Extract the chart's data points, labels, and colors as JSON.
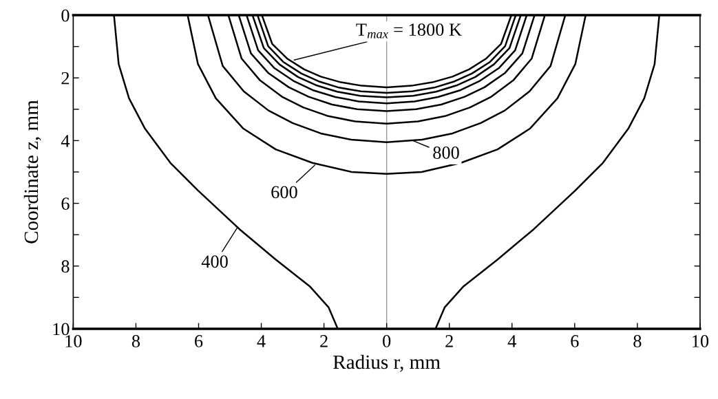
{
  "chart_data": {
    "type": "line",
    "xlabel": "Radius r, mm",
    "ylabel": "Coordinate z, mm",
    "xlim": [
      -10,
      10
    ],
    "xticks": [
      {
        "value": -10,
        "label": "10"
      },
      {
        "value": -8,
        "label": "8"
      },
      {
        "value": -6,
        "label": "6"
      },
      {
        "value": -4,
        "label": "4"
      },
      {
        "value": -2,
        "label": "2"
      },
      0,
      2,
      4,
      6,
      8,
      10
    ],
    "ylim": [
      10,
      0
    ],
    "yticks": [
      0,
      {
        "value": 1,
        "label": null
      },
      2,
      {
        "value": 3,
        "label": null
      },
      4,
      {
        "value": 5,
        "label": null
      },
      6,
      {
        "value": 7,
        "label": null
      },
      8,
      {
        "value": 9,
        "label": null
      },
      10
    ],
    "grid": false,
    "marker": "none",
    "line_style": "solid",
    "ref_lines": [
      {
        "axis": "x",
        "value": 0,
        "label": null,
        "color": "#999999"
      }
    ],
    "annotations": [
      {
        "text": "T$_{max}$ = 1800 K",
        "x": -2.95,
        "y": 1.43
      },
      {
        "text": "800",
        "x": 0.86,
        "y": 4.01
      },
      {
        "text": "600",
        "x": -2.29,
        "y": 4.78
      },
      {
        "text": "400",
        "x": -4.75,
        "y": 6.75
      }
    ],
    "series": [
      {
        "color": "#000000",
        "x": [
          -8.7,
          -8.55,
          -8.22,
          -7.71,
          -6.9,
          -6.02,
          -4.7,
          -3.54,
          -2.44,
          -1.85,
          -1.56
        ],
        "values": [
          0,
          1.56,
          2.65,
          3.62,
          4.71,
          5.59,
          6.82,
          7.79,
          8.66,
          9.32,
          10
        ]
      },
      {
        "color": "#000000",
        "x": [
          8.7,
          8.55,
          8.22,
          7.71,
          6.9,
          6.02,
          4.7,
          3.54,
          2.44,
          1.85,
          1.56
        ],
        "values": [
          0,
          1.56,
          2.65,
          3.62,
          4.71,
          5.59,
          6.82,
          7.79,
          8.66,
          9.32,
          10
        ]
      },
      {
        "color": "#000000",
        "x": [
          -6.35,
          -6.02,
          -5.45,
          -4.57,
          -3.54,
          -2.37,
          -1.12,
          0,
          1.12,
          2.37,
          3.54,
          4.57,
          5.45,
          6.02,
          6.35
        ],
        "values": [
          0,
          1.56,
          2.65,
          3.62,
          4.28,
          4.71,
          5.0,
          5.06,
          5.0,
          4.71,
          4.28,
          3.62,
          2.65,
          1.56,
          0
        ]
      },
      {
        "color": "#000000",
        "x": [
          -5.7,
          -5.23,
          -4.56,
          -3.77,
          -3.0,
          -2.1,
          -1.13,
          0,
          1.13,
          2.1,
          3.0,
          3.77,
          4.56,
          5.23,
          5.7
        ],
        "values": [
          0,
          1.62,
          2.43,
          3.04,
          3.44,
          3.77,
          3.97,
          4.05,
          3.97,
          3.77,
          3.44,
          3.04,
          2.43,
          1.62,
          0
        ]
      },
      {
        "color": "#000000",
        "x": [
          -5.05,
          -4.63,
          -4.04,
          -3.34,
          -2.66,
          -1.86,
          -1.0,
          0,
          1.0,
          1.86,
          2.66,
          3.34,
          4.04,
          4.63,
          5.05
        ],
        "values": [
          0,
          1.38,
          2.08,
          2.6,
          2.94,
          3.22,
          3.39,
          3.46,
          3.39,
          3.22,
          2.94,
          2.6,
          2.08,
          1.38,
          0
        ]
      },
      {
        "color": "#000000",
        "x": [
          -4.72,
          -4.33,
          -3.78,
          -3.12,
          -2.49,
          -1.74,
          -0.94,
          0,
          0.94,
          1.74,
          2.49,
          3.12,
          3.78,
          4.33,
          4.72
        ],
        "values": [
          0,
          1.22,
          1.84,
          2.3,
          2.6,
          2.85,
          3.0,
          3.06,
          3.0,
          2.85,
          2.6,
          2.3,
          1.84,
          1.22,
          0
        ]
      },
      {
        "color": "#000000",
        "x": [
          -4.47,
          -4.1,
          -3.58,
          -2.95,
          -2.36,
          -1.64,
          -0.89,
          0,
          0.89,
          1.64,
          2.36,
          2.95,
          3.58,
          4.1,
          4.47
        ],
        "values": [
          0,
          1.12,
          1.69,
          2.11,
          2.39,
          2.61,
          2.75,
          2.81,
          2.75,
          2.61,
          2.39,
          2.11,
          1.69,
          1.12,
          0
        ]
      },
      {
        "color": "#000000",
        "x": [
          -4.28,
          -3.92,
          -3.42,
          -2.83,
          -2.26,
          -1.58,
          -0.85,
          0,
          0.85,
          1.58,
          2.26,
          2.83,
          3.42,
          3.92,
          4.28
        ],
        "values": [
          0,
          1.05,
          1.57,
          1.97,
          2.23,
          2.44,
          2.57,
          2.62,
          2.57,
          2.44,
          2.23,
          1.97,
          1.57,
          1.05,
          0
        ]
      },
      {
        "color": "#000000",
        "x": [
          -4.12,
          -3.78,
          -3.3,
          -2.72,
          -2.17,
          -1.52,
          -0.82,
          0,
          0.82,
          1.52,
          2.17,
          2.72,
          3.3,
          3.78,
          4.12
        ],
        "values": [
          0,
          0.99,
          1.49,
          1.86,
          2.11,
          2.31,
          2.43,
          2.48,
          2.43,
          2.31,
          2.11,
          1.86,
          1.49,
          0.99,
          0
        ]
      },
      {
        "color": "#000000",
        "x": [
          -3.98,
          -3.65,
          -3.18,
          -2.63,
          -2.1,
          -1.46,
          -0.79,
          0,
          0.79,
          1.46,
          2.1,
          2.63,
          3.18,
          3.65,
          3.98
        ],
        "values": [
          0,
          0.92,
          1.38,
          1.73,
          1.96,
          2.14,
          2.25,
          2.3,
          2.25,
          2.14,
          1.96,
          1.73,
          1.38,
          0.92,
          0
        ]
      }
    ]
  }
}
